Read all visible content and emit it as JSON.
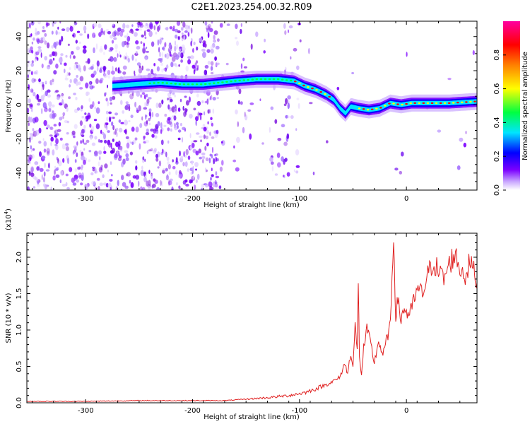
{
  "title": "C2E1.2023.254.00.32.R09",
  "chart_data": [
    {
      "type": "heatmap",
      "title": "C2E1.2023.254.00.32.R09",
      "xlabel": "Height of straight line (km)",
      "ylabel": "Frequency (Hz)",
      "xlim": [
        -355,
        66
      ],
      "ylim": [
        -50,
        49
      ],
      "x_ticks": [
        -300,
        -200,
        -100,
        0
      ],
      "y_ticks": [
        -40,
        -20,
        0,
        20,
        40
      ],
      "colorbar": {
        "label": "Normalized spectral amplitude",
        "range": [
          0,
          1
        ],
        "ticks": [
          "0.0",
          "0.2",
          "0.4",
          "0.6",
          "0.8"
        ],
        "tick_values": [
          0.0,
          0.2,
          0.4,
          0.6,
          0.8
        ],
        "colors": [
          "#ffffff",
          "#c9a8ff",
          "#7b00ff",
          "#0000ff",
          "#00e5ff",
          "#00ff40",
          "#ffff00",
          "#ff8000",
          "#ff0000",
          "#ff00a0"
        ]
      },
      "ridge": {
        "x": [
          -275,
          -255,
          -230,
          -210,
          -190,
          -175,
          -160,
          -140,
          -120,
          -105,
          -95,
          -85,
          -75,
          -68,
          -62,
          -57,
          -52,
          -45,
          -35,
          -25,
          -15,
          -5,
          5,
          20,
          40,
          66
        ],
        "frequency": [
          11,
          12,
          13,
          12,
          12,
          13,
          14,
          15,
          15,
          14,
          11,
          9,
          6,
          3,
          -2,
          -5,
          -1,
          -2,
          -3,
          -2,
          1,
          0,
          1,
          1,
          1,
          2
        ]
      }
    },
    {
      "type": "line",
      "xlabel": "Height of straight line (km)",
      "ylabel": "SNR (10 * v/v)",
      "y_multiplier": "(x10",
      "y_multiplier_exp": "4",
      "y_multiplier_close": ")",
      "xlim": [
        -355,
        66
      ],
      "ylim": [
        0,
        2.33
      ],
      "x_ticks": [
        -300,
        -200,
        -100,
        0
      ],
      "y_ticks": [
        "0.0",
        "0.5",
        "1.0",
        "1.5",
        "2.0"
      ],
      "y_tick_values": [
        0.0,
        0.5,
        1.0,
        1.5,
        2.0
      ],
      "color": "#e02020",
      "series": [
        {
          "x": [
            -355,
            -300,
            -250,
            -200,
            -170,
            -150,
            -130,
            -110,
            -95,
            -85,
            -75,
            -68,
            -62,
            -58,
            -55,
            -52,
            -50,
            -48,
            -46,
            -45,
            -44,
            -42,
            -40,
            -37,
            -34,
            -30,
            -26,
            -22,
            -18,
            -15,
            -12,
            -10,
            -8,
            -5,
            -2,
            0,
            3,
            6,
            10,
            15,
            20,
            25,
            30,
            35,
            40,
            45,
            50,
            55,
            60,
            66
          ],
          "y": [
            0.02,
            0.02,
            0.03,
            0.03,
            0.03,
            0.05,
            0.07,
            0.1,
            0.14,
            0.19,
            0.25,
            0.3,
            0.35,
            0.55,
            0.4,
            0.7,
            0.5,
            1.05,
            0.7,
            1.75,
            0.6,
            0.4,
            0.75,
            1.0,
            0.85,
            0.55,
            0.85,
            0.65,
            0.9,
            1.05,
            2.33,
            1.2,
            1.4,
            1.15,
            1.3,
            1.25,
            1.2,
            1.35,
            1.55,
            1.5,
            1.75,
            1.95,
            1.8,
            1.7,
            1.9,
            2.05,
            1.85,
            1.75,
            1.95,
            1.65
          ]
        }
      ]
    }
  ]
}
